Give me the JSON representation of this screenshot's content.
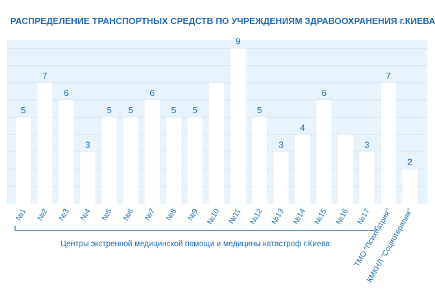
{
  "chart_data": {
    "type": "bar",
    "title": "РАСПРЕДЕЛЕНИЕ ТРАНСПОРТНЫХ СРЕДСТВ ПО УЧРЕЖДЕНИЯМ ЗДРАВООХРАНЕНИЯ г.КИЕВА, ШТ.",
    "categories": [
      "№1",
      "№2",
      "№3",
      "№4",
      "№5",
      "№6",
      "№7",
      "№8",
      "№9",
      "№10",
      "№11",
      "№12",
      "№13",
      "№14",
      "№15",
      "№16",
      "№17",
      "ТМО \"Психиатрия\"",
      "КМКНЛ \"Социотерапия\""
    ],
    "values": [
      5,
      7,
      6,
      3,
      5,
      5,
      6,
      5,
      5,
      7,
      9,
      5,
      3,
      4,
      6,
      4,
      3,
      7,
      2
    ],
    "value_labels": [
      "5",
      "7",
      "6",
      "3",
      "5",
      "5",
      "6",
      "5",
      "5",
      "",
      "9",
      "5",
      "3",
      "4",
      "6",
      "",
      "3",
      "7",
      "2"
    ],
    "group_label": "Центры экстренной медицинской помощи и медицины катастроф г.Киева",
    "grid": true,
    "legend": "none",
    "ylim": [
      0,
      9.5
    ],
    "colors": {
      "plot_background": "#e8f3fb",
      "gridline": "#cfe2f1",
      "bar": "#ffffff",
      "text": "#1f6db6"
    }
  }
}
